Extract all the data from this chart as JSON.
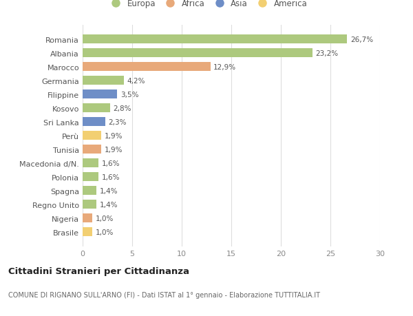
{
  "countries": [
    "Romania",
    "Albania",
    "Marocco",
    "Germania",
    "Filippine",
    "Kosovo",
    "Sri Lanka",
    "Perù",
    "Tunisia",
    "Macedonia d/N.",
    "Polonia",
    "Spagna",
    "Regno Unito",
    "Nigeria",
    "Brasile"
  ],
  "values": [
    26.7,
    23.2,
    12.9,
    4.2,
    3.5,
    2.8,
    2.3,
    1.9,
    1.9,
    1.6,
    1.6,
    1.4,
    1.4,
    1.0,
    1.0
  ],
  "labels": [
    "26,7%",
    "23,2%",
    "12,9%",
    "4,2%",
    "3,5%",
    "2,8%",
    "2,3%",
    "1,9%",
    "1,9%",
    "1,6%",
    "1,6%",
    "1,4%",
    "1,4%",
    "1,0%",
    "1,0%"
  ],
  "continents": [
    "Europa",
    "Europa",
    "Africa",
    "Europa",
    "Asia",
    "Europa",
    "Asia",
    "America",
    "Africa",
    "Europa",
    "Europa",
    "Europa",
    "Europa",
    "Africa",
    "America"
  ],
  "colors": {
    "Europa": "#adc97e",
    "Africa": "#e8a97a",
    "Asia": "#6e8ec7",
    "America": "#f2cf72"
  },
  "legend_order": [
    "Europa",
    "Africa",
    "Asia",
    "America"
  ],
  "title": "Cittadini Stranieri per Cittadinanza",
  "subtitle": "COMUNE DI RIGNANO SULL'ARNO (FI) - Dati ISTAT al 1° gennaio - Elaborazione TUTTITALIA.IT",
  "xlim": [
    0,
    30
  ],
  "xticks": [
    0,
    5,
    10,
    15,
    20,
    25,
    30
  ],
  "background_color": "#ffffff",
  "grid_color": "#dddddd"
}
